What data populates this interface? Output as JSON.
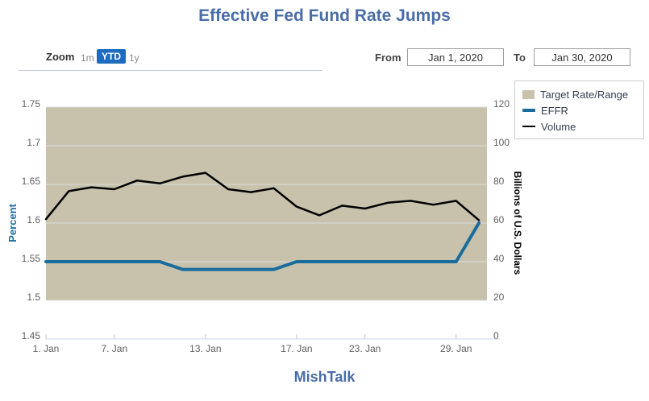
{
  "title": "Effective Fed Fund Rate Jumps",
  "footer": "MishTalk",
  "range_selector": {
    "zoom_label": "Zoom",
    "buttons": [
      {
        "label": "1m",
        "selected": false
      },
      {
        "label": "YTD",
        "selected": true
      },
      {
        "label": "1y",
        "selected": false
      }
    ],
    "from_label": "From",
    "from_value": "Jan 1, 2020",
    "to_label": "To",
    "to_value": "Jan 30, 2020"
  },
  "legend": {
    "items": [
      {
        "label": "Target Rate/Range",
        "color": "#c8c2ac",
        "swatch": "band"
      },
      {
        "label": "EFFR",
        "color": "#1a6c9d",
        "swatch": "thick-line"
      },
      {
        "label": "Volume",
        "color": "#000000",
        "swatch": "thin-line"
      }
    ]
  },
  "colors": {
    "accent_title": "#4a6da7",
    "selected_button_bg": "#1e6cc0",
    "band": "#c8c2ac",
    "effr_line": "#1a6c9d",
    "volume_line": "#000000",
    "grid_line": "#dcdcdc",
    "axis_line": "#ccd6eb",
    "axis_text": "#606060"
  },
  "chart_data": {
    "type": "line",
    "title": "Effective Fed Fund Rate Jumps",
    "grid": true,
    "legend_position": "top-right",
    "x": [
      "Jan 1",
      "Jan 3",
      "Jan 6",
      "Jan 7",
      "Jan 8",
      "Jan 9",
      "Jan 10",
      "Jan 13",
      "Jan 14",
      "Jan 15",
      "Jan 16",
      "Jan 17",
      "Jan 21",
      "Jan 22",
      "Jan 23",
      "Jan 24",
      "Jan 27",
      "Jan 28",
      "Jan 29",
      "Jan 30"
    ],
    "x_tick_labels": [
      {
        "index": 0,
        "label": "1. Jan"
      },
      {
        "index": 3,
        "label": "7. Jan"
      },
      {
        "index": 7,
        "label": "13. Jan"
      },
      {
        "index": 11,
        "label": "17. Jan"
      },
      {
        "index": 14,
        "label": "23. Jan"
      },
      {
        "index": 18,
        "label": "29. Jan"
      }
    ],
    "left_axis": {
      "title": "Percent",
      "min": 1.45,
      "max": 1.75,
      "ticks": [
        1.45,
        1.5,
        1.55,
        1.6,
        1.65,
        1.7,
        1.75
      ]
    },
    "right_axis": {
      "title": "Billions of U.S. Dollars",
      "min": 0,
      "max": 120,
      "ticks": [
        0,
        20,
        40,
        60,
        80,
        100,
        120
      ]
    },
    "series": [
      {
        "name": "Target Rate/Range",
        "type": "range-band",
        "axis": "left",
        "low": 1.5,
        "high": 1.75,
        "color": "#c8c2ac"
      },
      {
        "name": "EFFR",
        "type": "line",
        "axis": "left",
        "color": "#1a6c9d",
        "width": 4,
        "values": [
          1.55,
          1.55,
          1.55,
          1.55,
          1.55,
          1.55,
          1.54,
          1.54,
          1.54,
          1.54,
          1.54,
          1.55,
          1.55,
          1.55,
          1.55,
          1.55,
          1.55,
          1.55,
          1.55,
          1.6
        ]
      },
      {
        "name": "Volume",
        "type": "line",
        "axis": "right",
        "color": "#000000",
        "width": 2.5,
        "values": [
          62,
          76.5,
          78.5,
          77.5,
          82,
          80.5,
          84,
          86,
          77.5,
          76,
          78,
          68.5,
          64,
          69,
          67.5,
          70.5,
          71.5,
          69.5,
          71.5,
          61.5
        ]
      }
    ]
  }
}
